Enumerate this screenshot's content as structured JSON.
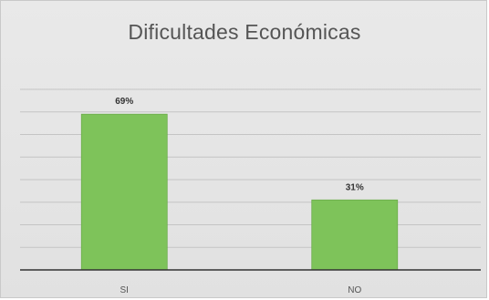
{
  "chart_data": {
    "type": "bar",
    "title": "Dificultades Económicas",
    "categories": [
      "SI",
      "NO"
    ],
    "values": [
      69,
      31
    ],
    "data_labels": [
      "69%",
      "31%"
    ],
    "xlabel": "",
    "ylabel": "",
    "ylim": [
      0,
      80
    ],
    "grid": true,
    "legend": "none",
    "colors": {
      "bar": "#7ec35a",
      "bar_edge": "#6bab4a",
      "grid": "#c4c4c4",
      "axis": "#333333",
      "background": "#e5e5e5",
      "title": "#555555"
    }
  }
}
